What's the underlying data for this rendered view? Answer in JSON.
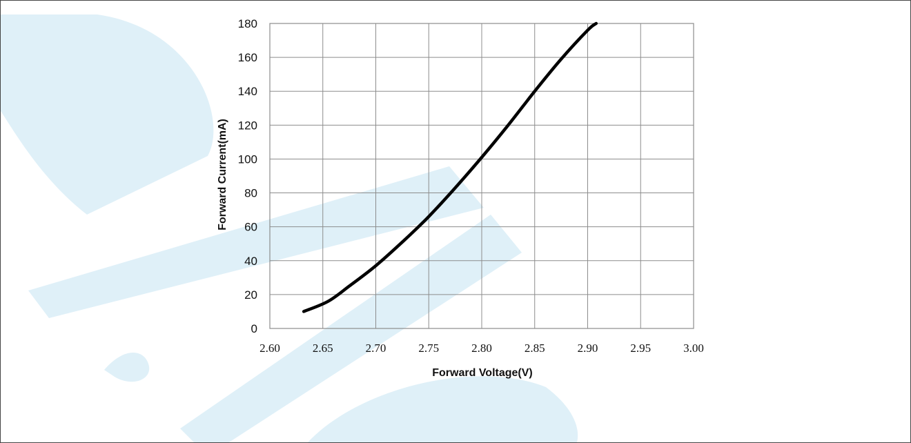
{
  "chart_data": {
    "type": "line",
    "title": "",
    "xlabel": "Forward Voltage(V)",
    "ylabel": "Forward Current(mA)",
    "xlim": [
      2.6,
      3.0
    ],
    "ylim": [
      0,
      180
    ],
    "x_ticks": [
      "2.60",
      "2.65",
      "2.70",
      "2.75",
      "2.80",
      "2.85",
      "2.90",
      "2.95",
      "3.00"
    ],
    "y_ticks": [
      "0",
      "20",
      "40",
      "60",
      "80",
      "100",
      "120",
      "140",
      "160",
      "180"
    ],
    "grid": true,
    "legend": "none",
    "series": [
      {
        "color": "#000000",
        "x": [
          2.632,
          2.655,
          2.675,
          2.7,
          2.725,
          2.75,
          2.775,
          2.8,
          2.825,
          2.85,
          2.875,
          2.9,
          2.908
        ],
        "y": [
          10,
          16,
          25,
          37,
          51,
          66,
          83,
          101,
          120,
          140,
          159,
          176,
          180
        ]
      }
    ]
  },
  "colors": {
    "watermark": "#dff0f8",
    "grid": "#8c8c8c",
    "line": "#000000"
  }
}
